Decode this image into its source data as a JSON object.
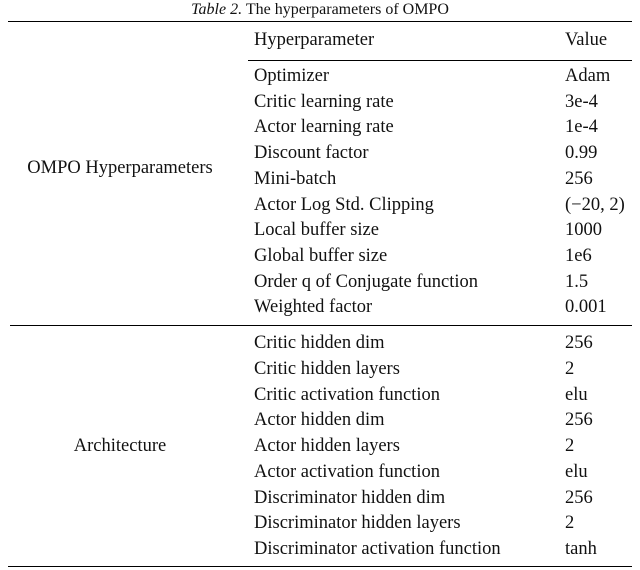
{
  "caption": {
    "label": "Table 2.",
    "text": "The hyperparameters of OMPO"
  },
  "table": {
    "header": [
      "Hyperparameter",
      "Value"
    ],
    "groups": [
      {
        "label": "OMPO Hyperparameters",
        "rows": [
          [
            "Optimizer",
            "Adam"
          ],
          [
            "Critic learning rate",
            "3e-4"
          ],
          [
            "Actor learning rate",
            "1e-4"
          ],
          [
            "Discount factor",
            "0.99"
          ],
          [
            "Mini-batch",
            "256"
          ],
          [
            "Actor Log Std. Clipping",
            "(−20, 2)"
          ],
          [
            "Local buffer size",
            "1000"
          ],
          [
            "Global buffer size",
            "1e6"
          ],
          [
            "Order q of Conjugate function",
            "1.5"
          ],
          [
            "Weighted factor",
            "0.001"
          ]
        ]
      },
      {
        "label": "Architecture",
        "rows": [
          [
            "Critic hidden dim",
            "256"
          ],
          [
            "Critic hidden layers",
            "2"
          ],
          [
            "Critic activation function",
            "elu"
          ],
          [
            "Actor hidden dim",
            "256"
          ],
          [
            "Actor hidden layers",
            "2"
          ],
          [
            "Actor activation function",
            "elu"
          ],
          [
            "Discriminator hidden dim",
            "256"
          ],
          [
            "Discriminator hidden layers",
            "2"
          ],
          [
            "Discriminator activation function",
            "tanh"
          ]
        ]
      }
    ]
  }
}
